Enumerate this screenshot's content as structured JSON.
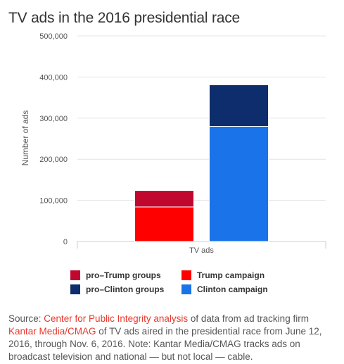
{
  "title": "TV ads in the 2016 presidential race",
  "chart_data": {
    "type": "bar",
    "stacked": true,
    "categories": [
      "TV ads"
    ],
    "ylabel": "Number of ads",
    "ylim": [
      0,
      500000
    ],
    "yticks": [
      "0",
      "100,000",
      "200,000",
      "300,000",
      "400,000",
      "500,000"
    ],
    "grid": true,
    "groups": [
      {
        "stack": [
          {
            "name": "Trump campaign",
            "values": [
              84000
            ],
            "color": "#ff0000"
          },
          {
            "name": "pro-Trump groups",
            "values": [
              40000
            ],
            "color": "#c0082f"
          }
        ]
      },
      {
        "stack": [
          {
            "name": "Clinton campaign",
            "values": [
              280000
            ],
            "color": "#1a73e8"
          },
          {
            "name": "pro-Clinton groups",
            "values": [
              101000
            ],
            "color": "#0d2d6c"
          }
        ]
      }
    ],
    "legend": [
      {
        "name": "pro–Trump groups",
        "color": "#c0082f"
      },
      {
        "name": "Trump campaign",
        "color": "#ff0000"
      },
      {
        "name": "pro–Clinton groups",
        "color": "#0d2d6c"
      },
      {
        "name": "Clinton campaign",
        "color": "#1a73e8"
      }
    ]
  },
  "source": {
    "prefix": "Source: ",
    "link1": "Center for Public Integrity analysis",
    "mid1": " of data from ad tracking firm ",
    "link2": "Kantar Media/CMAG",
    "rest": " of TV ads aired in the presidential race from June 12, 2016, through Nov. 6, 2016. Note: Kantar Media/CMAG tracks ads on broadcast television and national — but not local — cable."
  }
}
